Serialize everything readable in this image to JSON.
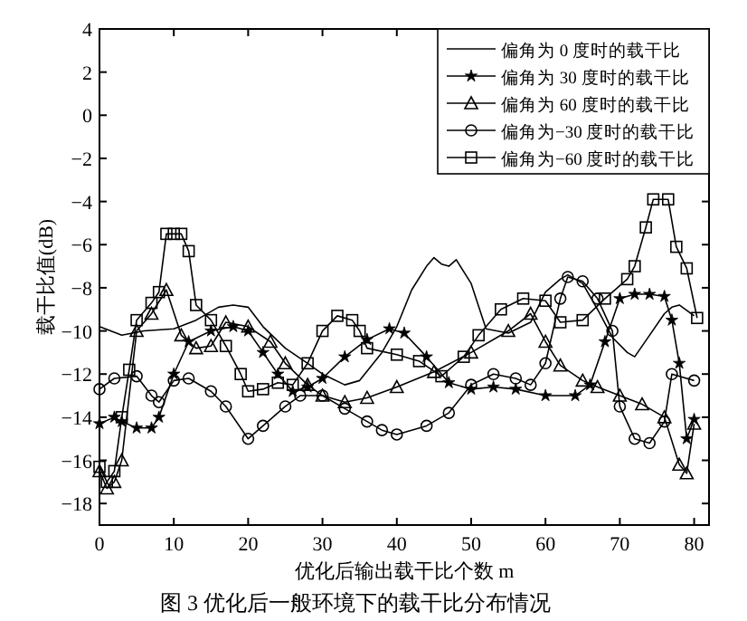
{
  "chart_data": {
    "type": "line",
    "title": "图 3 优化后一般环境下的载干比分布情况",
    "xlabel": "优化后输出载干比个数 m",
    "ylabel": "载干比值(dB)",
    "xlim": [
      0,
      82
    ],
    "ylim": [
      -19,
      4
    ],
    "xticks": [
      0,
      10,
      20,
      30,
      40,
      50,
      60,
      70,
      80
    ],
    "yticks": [
      -18,
      -16,
      -14,
      -12,
      -10,
      -8,
      -6,
      -4,
      -2,
      0,
      2,
      4
    ],
    "grid": false,
    "legend": "top right",
    "line_style": "solid",
    "series": [
      {
        "name": "偏角为 0 度时的载干比",
        "color": "#000000",
        "marker": "none",
        "x": [
          0,
          3,
          6,
          10,
          13,
          16,
          18,
          20,
          22,
          25,
          28,
          30,
          33,
          35,
          38,
          40,
          42,
          44,
          45,
          46,
          47,
          48,
          50,
          52,
          55,
          58,
          60,
          62,
          63,
          65,
          67,
          69,
          71,
          72,
          74,
          76,
          77,
          78,
          80
        ],
        "values": [
          -9.8,
          -10.2,
          -10,
          -9.9,
          -9.5,
          -8.9,
          -8.8,
          -8.9,
          -9.8,
          -10.8,
          -11.5,
          -12,
          -12.5,
          -12.3,
          -11,
          -9.8,
          -8.1,
          -7,
          -6.6,
          -6.9,
          -7,
          -6.7,
          -7.8,
          -9.9,
          -10.1,
          -9.6,
          -8.2,
          -7.6,
          -7.4,
          -7.8,
          -9,
          -10.3,
          -11,
          -11.2,
          -10.2,
          -9.2,
          -8.9,
          -8.8,
          -9.3
        ]
      },
      {
        "name": "偏角为 30 度时的载干比",
        "color": "#000000",
        "marker": "star",
        "x": [
          0,
          2,
          3,
          5,
          7,
          8,
          10,
          12,
          15,
          18,
          20,
          22,
          24,
          26,
          28,
          30,
          33,
          36,
          39,
          41,
          44,
          47,
          50,
          53,
          56,
          60,
          64,
          66,
          68,
          70,
          72,
          74,
          76,
          77,
          78,
          79,
          80
        ],
        "values": [
          -14.3,
          -14,
          -14.2,
          -14.5,
          -14.5,
          -14,
          -12,
          -10.5,
          -10,
          -9.8,
          -10,
          -11,
          -12,
          -12.8,
          -12.6,
          -12.2,
          -11.2,
          -10.4,
          -9.9,
          -10.1,
          -11.2,
          -12.4,
          -12.7,
          -12.6,
          -12.7,
          -13,
          -13,
          -12.5,
          -10.5,
          -8.5,
          -8.3,
          -8.3,
          -8.4,
          -9.5,
          -11.5,
          -15,
          -14.1
        ]
      },
      {
        "name": "偏角为 60 度时的载干比",
        "color": "#000000",
        "marker": "triangle",
        "x": [
          0,
          1,
          2,
          3,
          5,
          7,
          9,
          11,
          13,
          15,
          17,
          20,
          23,
          25,
          28,
          30,
          33,
          36,
          40,
          45,
          50,
          55,
          58,
          60,
          62,
          65,
          67,
          70,
          73,
          76,
          78,
          79,
          80
        ],
        "values": [
          -16.5,
          -17.3,
          -17,
          -16,
          -10,
          -9.2,
          -8.1,
          -10.2,
          -10.8,
          -10.7,
          -9.6,
          -9.8,
          -10.5,
          -11.5,
          -12.5,
          -13,
          -13.3,
          -13.1,
          -12.6,
          -11.9,
          -11,
          -10,
          -9.2,
          -10.5,
          -11.6,
          -12.3,
          -12.6,
          -13,
          -13.4,
          -14,
          -16.2,
          -16.6,
          -14.3
        ]
      },
      {
        "name": "偏角为−30 度时的载干比",
        "color": "#000000",
        "marker": "circle",
        "x": [
          0,
          2,
          5,
          7,
          8,
          10,
          12,
          15,
          17,
          20,
          22,
          25,
          27,
          30,
          33,
          36,
          38,
          40,
          44,
          47,
          50,
          53,
          56,
          58,
          60,
          62,
          63,
          65,
          67,
          69,
          70,
          72,
          74,
          76,
          77,
          80
        ],
        "values": [
          -12.7,
          -12.2,
          -12.1,
          -13,
          -13.3,
          -12.3,
          -12.2,
          -12.8,
          -13.5,
          -15,
          -14.4,
          -13.5,
          -13,
          -13,
          -13.6,
          -14.2,
          -14.6,
          -14.8,
          -14.4,
          -13.8,
          -12.5,
          -12,
          -12.2,
          -12.5,
          -11.5,
          -8.5,
          -7.5,
          -7.7,
          -8.5,
          -10,
          -13.5,
          -15,
          -15.2,
          -14.2,
          -12,
          -12.3
        ]
      },
      {
        "name": "偏角为−60 度时的载干比",
        "color": "#000000",
        "marker": "square",
        "x": [
          0,
          1,
          2,
          3,
          4,
          5,
          7,
          8,
          9,
          10,
          11,
          12,
          13,
          15,
          17,
          19,
          20,
          22,
          24,
          26,
          28,
          30,
          32,
          34,
          35,
          36,
          40,
          43,
          46,
          49,
          51,
          54,
          57,
          60,
          62,
          65,
          68,
          71,
          72,
          73.5,
          74.5,
          76.5,
          77.6,
          79,
          80.4
        ],
        "values": [
          -16.3,
          -17,
          -16.5,
          -14,
          -11.8,
          -9.5,
          -8.7,
          -8.2,
          -5.5,
          -5.5,
          -5.5,
          -6.3,
          -8.8,
          -9.5,
          -10.7,
          -12,
          -12.8,
          -12.7,
          -12.4,
          -12.5,
          -11.5,
          -10,
          -9.3,
          -9.5,
          -10,
          -10.8,
          -11.1,
          -11.4,
          -12.1,
          -11.2,
          -10.2,
          -9,
          -8.5,
          -8.6,
          -9.6,
          -9.5,
          -8.5,
          -7.6,
          -7,
          -5.2,
          -3.9,
          -3.9,
          -6.1,
          -7.1,
          -9.4
        ]
      }
    ]
  }
}
